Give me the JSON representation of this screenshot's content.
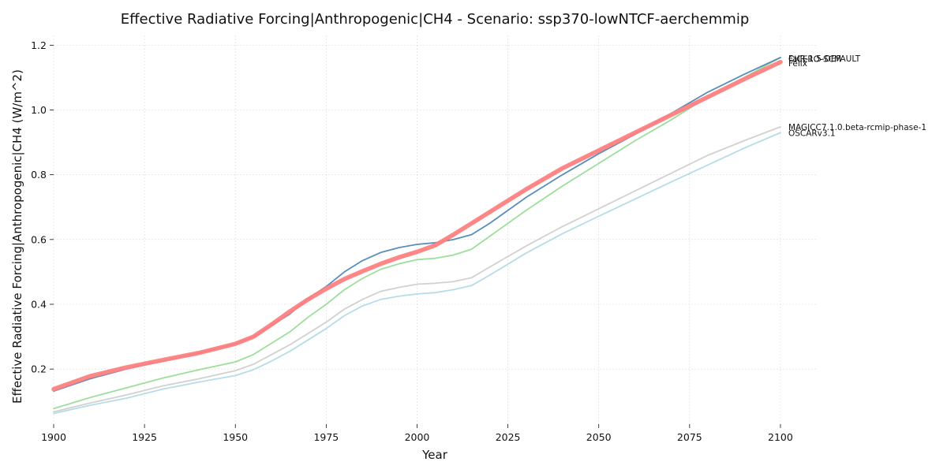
{
  "chart_data": {
    "type": "line",
    "title": "Effective Radiative Forcing|Anthropogenic|CH4 - Scenario: ssp370-lowNTCF-aerchemmip",
    "xlabel": "Year",
    "ylabel": "Effective Radiative Forcing|Anthropogenic|CH4 (W/m^2)",
    "xlim": [
      1900,
      2110
    ],
    "ylim": [
      0.03,
      1.23
    ],
    "xticks": [
      1900,
      1925,
      1950,
      1975,
      2000,
      2025,
      2050,
      2075,
      2100
    ],
    "xtick_labels": [
      "1900",
      "1925",
      "1950",
      "1975",
      "2000",
      "2025",
      "2050",
      "2075",
      "2100"
    ],
    "yticks": [
      0.2,
      0.4,
      0.6,
      0.8,
      1.0,
      1.2
    ],
    "ytick_labels": [
      "0.2",
      "0.4",
      "0.6",
      "0.8",
      "1.0",
      "1.2"
    ],
    "grid": true,
    "legend": "none",
    "series": [
      {
        "name": "MAGICC7.1.0.beta-rcmip-phase-1",
        "color": "#cccccc",
        "width": 1.8,
        "x": [
          1900,
          1910,
          1920,
          1930,
          1940,
          1950,
          1955,
          1960,
          1965,
          1970,
          1975,
          1980,
          1985,
          1990,
          1995,
          2000,
          2005,
          2010,
          2015,
          2020,
          2030,
          2040,
          2050,
          2060,
          2070,
          2080,
          2090,
          2100
        ],
        "y": [
          0.068,
          0.095,
          0.12,
          0.148,
          0.17,
          0.195,
          0.215,
          0.245,
          0.275,
          0.31,
          0.345,
          0.385,
          0.415,
          0.44,
          0.452,
          0.462,
          0.465,
          0.47,
          0.482,
          0.515,
          0.58,
          0.64,
          0.695,
          0.75,
          0.805,
          0.86,
          0.905,
          0.948
        ]
      },
      {
        "name": "OSCARv3.1",
        "color": "#add8e6",
        "width": 1.8,
        "x": [
          1900,
          1910,
          1920,
          1930,
          1940,
          1950,
          1955,
          1960,
          1965,
          1970,
          1975,
          1980,
          1985,
          1990,
          1995,
          2000,
          2005,
          2010,
          2015,
          2020,
          2030,
          2040,
          2050,
          2060,
          2070,
          2080,
          2090,
          2100
        ],
        "y": [
          0.063,
          0.088,
          0.11,
          0.138,
          0.16,
          0.18,
          0.198,
          0.225,
          0.255,
          0.29,
          0.325,
          0.365,
          0.395,
          0.415,
          0.425,
          0.432,
          0.436,
          0.445,
          0.458,
          0.49,
          0.558,
          0.618,
          0.672,
          0.725,
          0.778,
          0.83,
          0.882,
          0.93
        ]
      },
      {
        "name": "FaIR-1.5-DEFAULT",
        "color": "#90dc90",
        "width": 1.8,
        "x": [
          1900,
          1910,
          1920,
          1930,
          1940,
          1950,
          1955,
          1960,
          1965,
          1970,
          1975,
          1980,
          1985,
          1990,
          1995,
          2000,
          2005,
          2010,
          2015,
          2020,
          2030,
          2040,
          2050,
          2060,
          2070,
          2080,
          2090,
          2100
        ],
        "y": [
          0.078,
          0.112,
          0.142,
          0.172,
          0.198,
          0.222,
          0.245,
          0.28,
          0.315,
          0.36,
          0.4,
          0.445,
          0.48,
          0.508,
          0.525,
          0.538,
          0.542,
          0.552,
          0.57,
          0.61,
          0.69,
          0.765,
          0.835,
          0.905,
          0.97,
          1.04,
          1.1,
          1.162
        ]
      },
      {
        "name": "CICERO-SCM",
        "color": "#4682b4",
        "width": 1.8,
        "x": [
          1900,
          1910,
          1920,
          1930,
          1940,
          1950,
          1955,
          1960,
          1965,
          1970,
          1975,
          1980,
          1985,
          1990,
          1995,
          2000,
          2005,
          2010,
          2015,
          2020,
          2030,
          2040,
          2050,
          2060,
          2070,
          2080,
          2090,
          2100
        ],
        "y": [
          0.132,
          0.17,
          0.2,
          0.225,
          0.25,
          0.278,
          0.3,
          0.335,
          0.37,
          0.418,
          0.455,
          0.5,
          0.535,
          0.56,
          0.575,
          0.585,
          0.59,
          0.6,
          0.615,
          0.65,
          0.73,
          0.8,
          0.865,
          0.925,
          0.99,
          1.055,
          1.11,
          1.162
        ]
      },
      {
        "name": "Felix",
        "color": "#ff7f7f",
        "width": 5.5,
        "x": [
          1900,
          1910,
          1920,
          1930,
          1940,
          1950,
          1955,
          1960,
          1965,
          1970,
          1975,
          1980,
          1985,
          1990,
          1995,
          2000,
          2005,
          2010,
          2015,
          2020,
          2030,
          2040,
          2050,
          2060,
          2070,
          2080,
          2090,
          2100
        ],
        "y": [
          0.138,
          0.178,
          0.205,
          0.228,
          0.25,
          0.278,
          0.3,
          0.338,
          0.378,
          0.415,
          0.448,
          0.478,
          0.502,
          0.525,
          0.545,
          0.562,
          0.582,
          0.615,
          0.65,
          0.685,
          0.755,
          0.82,
          0.875,
          0.93,
          0.985,
          1.04,
          1.095,
          1.148
        ]
      }
    ],
    "end_labels": [
      {
        "text": "FaIR-1.5-DEFAULT",
        "y": 1.16
      },
      {
        "text": "CICERO-SCM",
        "y": 1.158
      },
      {
        "text": "Felix",
        "y": 1.145
      },
      {
        "text": "MAGICC7.1.0.beta-rcmip-phase-1",
        "y": 0.948
      },
      {
        "text": "OSCARv3.1",
        "y": 0.93
      }
    ]
  }
}
